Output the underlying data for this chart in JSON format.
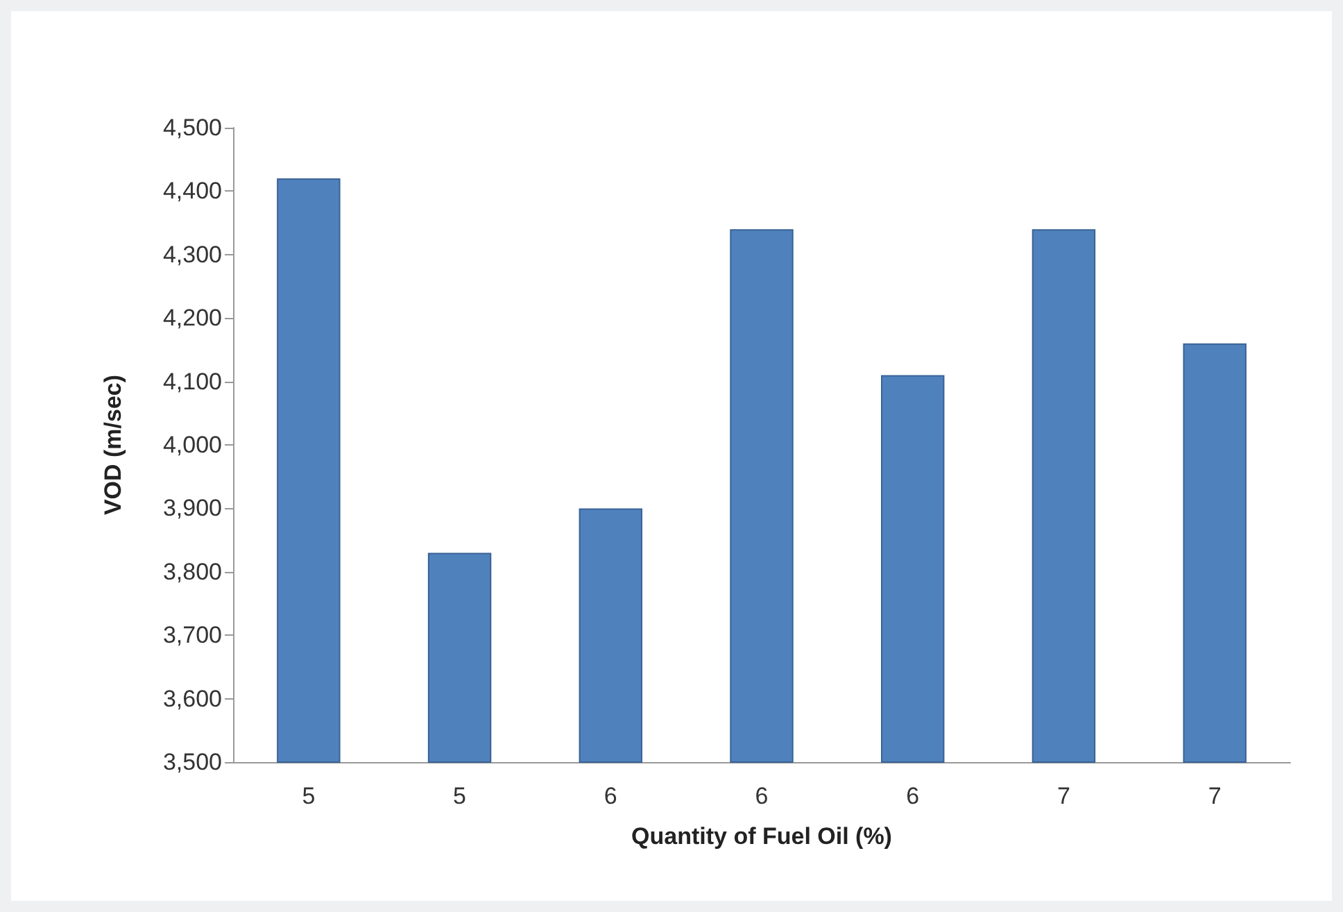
{
  "chart_data": {
    "type": "bar",
    "xlabel": "Quantity of Fuel Oil (%)",
    "ylabel": "VOD (m/sec)",
    "categories": [
      "5",
      "5",
      "6",
      "6",
      "6",
      "7",
      "7"
    ],
    "values": [
      4420,
      3830,
      3900,
      4340,
      4110,
      4340,
      4160
    ],
    "color": "#4f81bd",
    "ylim": [
      3500,
      4500
    ],
    "yticks": [
      {
        "value": 3500,
        "label": "3,500"
      },
      {
        "value": 3600,
        "label": "3,600"
      },
      {
        "value": 3700,
        "label": "3,700"
      },
      {
        "value": 3800,
        "label": "3,800"
      },
      {
        "value": 3900,
        "label": "3,900"
      },
      {
        "value": 4000,
        "label": "4,000"
      },
      {
        "value": 4100,
        "label": "4,100"
      },
      {
        "value": 4200,
        "label": "4,200"
      },
      {
        "value": 4300,
        "label": "4,300"
      },
      {
        "value": 4400,
        "label": "4,400"
      },
      {
        "value": 4500,
        "label": "4,500"
      }
    ],
    "grid": false
  }
}
